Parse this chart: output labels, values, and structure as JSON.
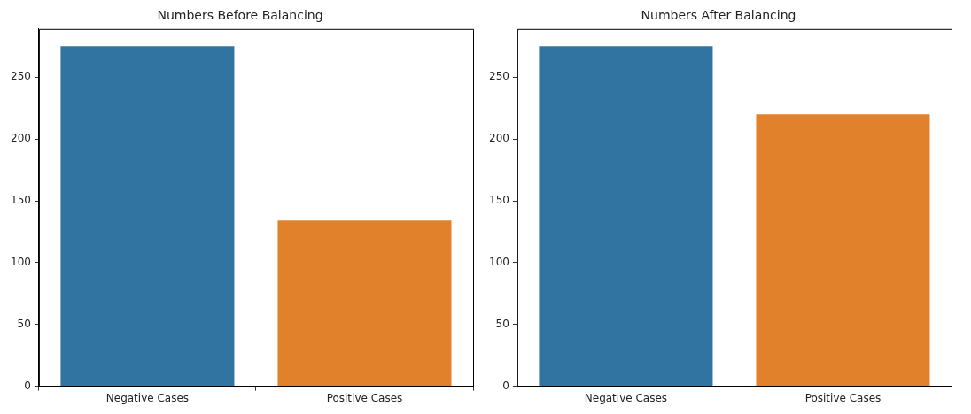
{
  "chart_data": [
    {
      "type": "bar",
      "title": "Numbers Before Balancing",
      "categories": [
        "Negative Cases",
        "Positive Cases"
      ],
      "values": [
        275,
        134
      ],
      "colors": [
        "#3274a1",
        "#e1812c"
      ],
      "ylim": [
        0,
        289
      ],
      "yticks": [
        0,
        50,
        100,
        150,
        200,
        250
      ],
      "grid": false
    },
    {
      "type": "bar",
      "title": "Numbers After Balancing",
      "categories": [
        "Negative Cases",
        "Positive Cases"
      ],
      "values": [
        275,
        220
      ],
      "colors": [
        "#3274a1",
        "#e1812c"
      ],
      "ylim": [
        0,
        289
      ],
      "yticks": [
        0,
        50,
        100,
        150,
        200,
        250
      ],
      "grid": false
    }
  ]
}
